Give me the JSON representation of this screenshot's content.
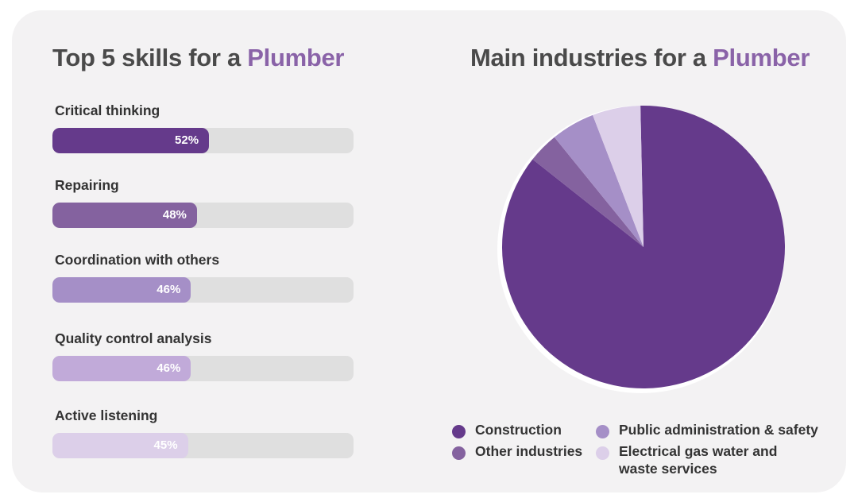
{
  "left": {
    "title_prefix": "Top 5 skills for a ",
    "title_highlight": "Plumber"
  },
  "right": {
    "title_prefix": "Main industries for a ",
    "title_highlight": "Plumber"
  },
  "colors": {
    "accent": "#8a63a8",
    "construction": "#653a8b",
    "other_industries": "#84629f",
    "public_admin": "#a58fc7",
    "electrical": "#dccfe9",
    "bar_track": "#dfdfdf",
    "card_background": "#f3f2f3"
  },
  "chart_data": [
    {
      "type": "bar",
      "orientation": "horizontal",
      "title": "Top 5 skills for a Plumber",
      "categories": [
        "Critical thinking",
        "Repairing",
        "Coordination with others",
        "Quality control analysis",
        "Active listening"
      ],
      "values": [
        52,
        48,
        46,
        46,
        45
      ],
      "value_labels": [
        "52%",
        "48%",
        "46%",
        "46%",
        "45%"
      ],
      "colors": [
        "#653a8b",
        "#84629f",
        "#a58fc7",
        "#c1aad9",
        "#dccfe9"
      ],
      "xlim": [
        0,
        100
      ]
    },
    {
      "type": "pie",
      "title": "Main industries for a Plumber",
      "labels": [
        "Construction",
        "Other industries",
        "Public administration & safety",
        "Electrical gas water and waste services"
      ],
      "legend_lines": [
        [
          "Construction"
        ],
        [
          "Other industries"
        ],
        [
          "Public administration & safety"
        ],
        [
          "Electrical gas water and",
          "waste services"
        ]
      ],
      "values": [
        86,
        3.5,
        5,
        5.5
      ],
      "colors": [
        "#653a8b",
        "#84629f",
        "#a58fc7",
        "#dccfe9"
      ],
      "legend": "bottom"
    }
  ]
}
